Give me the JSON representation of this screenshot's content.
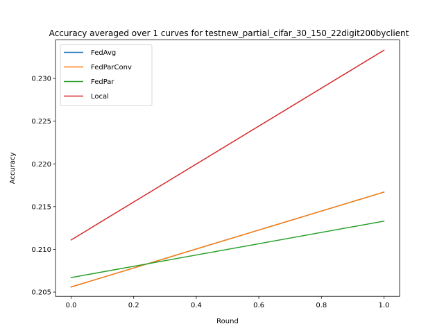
{
  "chart_data": {
    "type": "line",
    "title": "Accuracy averaged over 1 curves for testnew_partial_cifar_30_150_22digit200byclient",
    "xlabel": "Round",
    "ylabel": "Accuracy",
    "xlim": [
      -0.05,
      1.05
    ],
    "ylim": [
      0.2045,
      0.2345
    ],
    "xticks": [
      0.0,
      0.2,
      0.4,
      0.6,
      0.8,
      1.0
    ],
    "xtick_labels": [
      "0.0",
      "0.2",
      "0.4",
      "0.6",
      "0.8",
      "1.0"
    ],
    "yticks": [
      0.205,
      0.21,
      0.215,
      0.22,
      0.225,
      0.23
    ],
    "ytick_labels": [
      "0.205",
      "0.210",
      "0.215",
      "0.220",
      "0.225",
      "0.230"
    ],
    "grid": false,
    "legend_position": "top-left",
    "x": [
      0,
      1
    ],
    "series": [
      {
        "name": "FedAvg",
        "color": "#1f77b4",
        "values": [
          0.2056,
          0.2167
        ]
      },
      {
        "name": "FedParConv",
        "color": "#ff7f0e",
        "values": [
          0.2056,
          0.2167
        ]
      },
      {
        "name": "FedPar",
        "color": "#2ca02c",
        "values": [
          0.2067,
          0.2133
        ]
      },
      {
        "name": "Local",
        "color": "#d62728",
        "values": [
          0.2111,
          0.2333
        ]
      }
    ]
  }
}
